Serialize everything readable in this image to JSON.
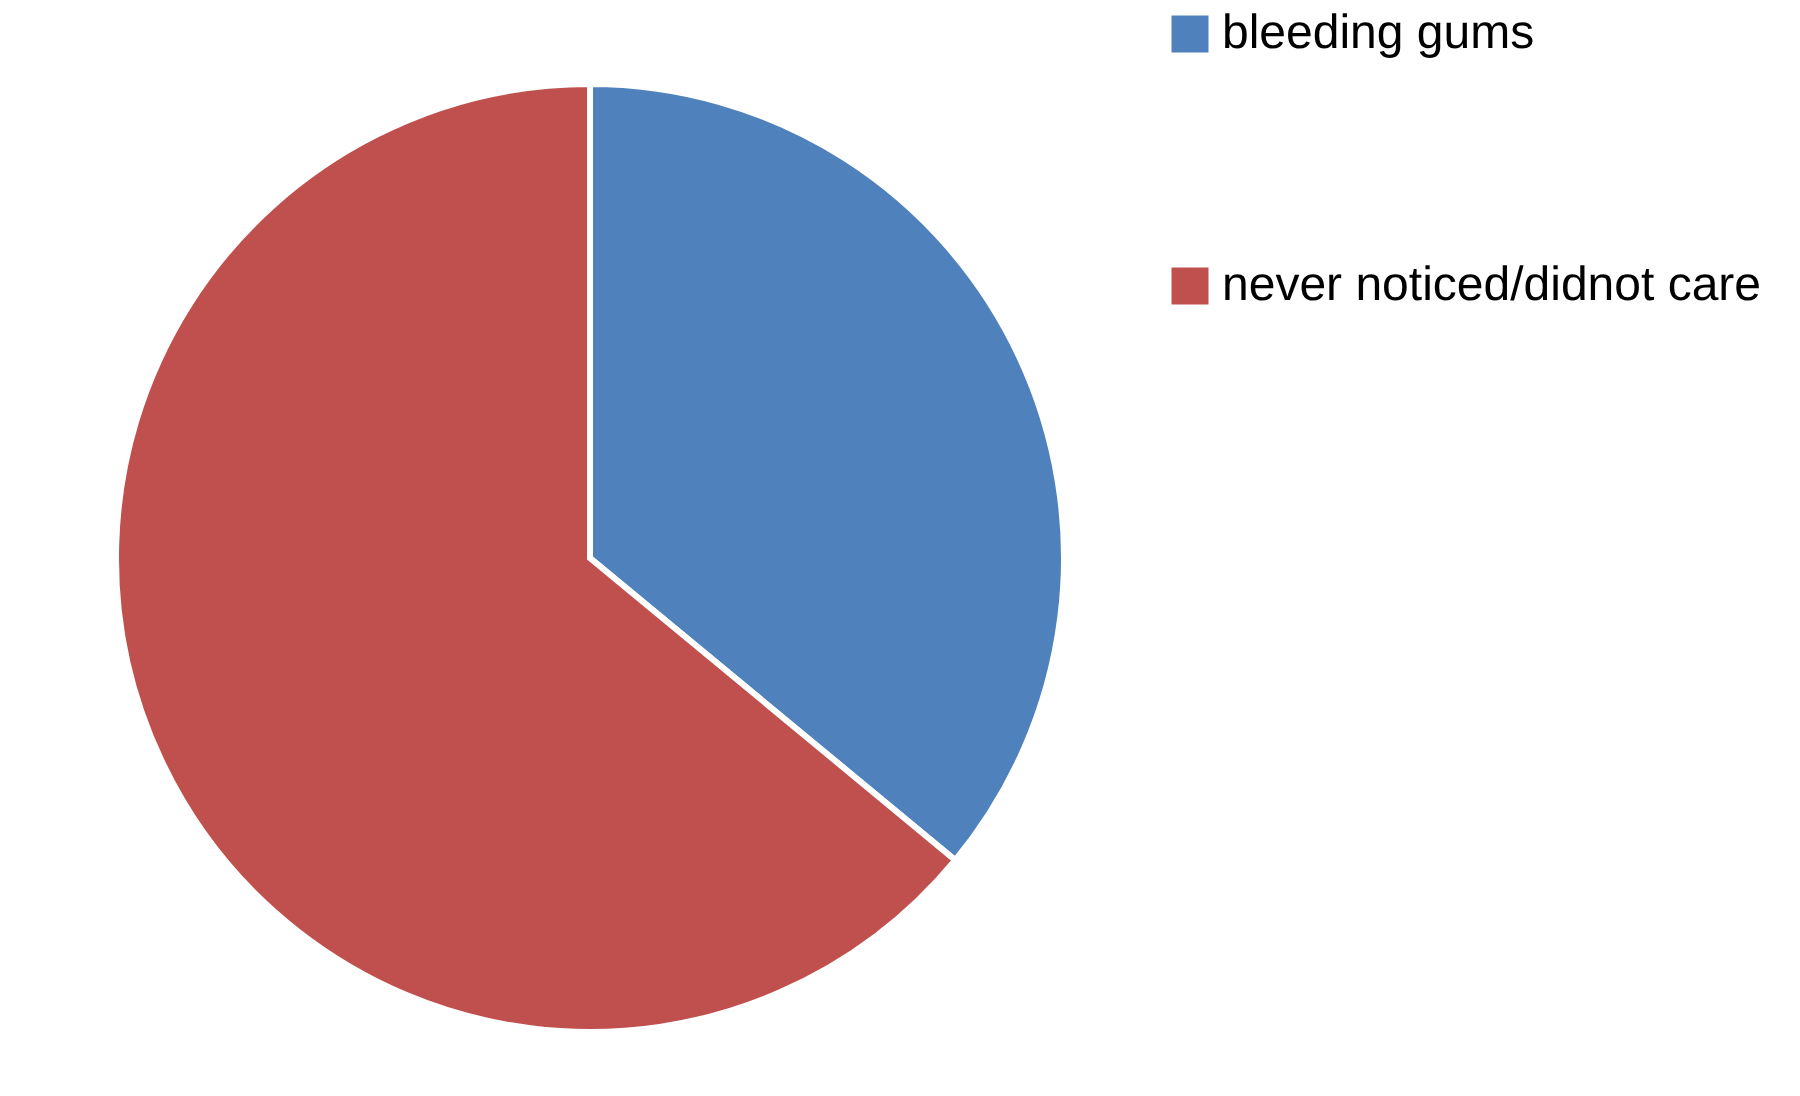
{
  "chart_data": {
    "type": "pie",
    "categories": [
      "bleeding gums",
      "never noticed/didnot care"
    ],
    "values": [
      36,
      64
    ],
    "colors": [
      "#4f81bd",
      "#c0504d"
    ],
    "legend": "right"
  }
}
